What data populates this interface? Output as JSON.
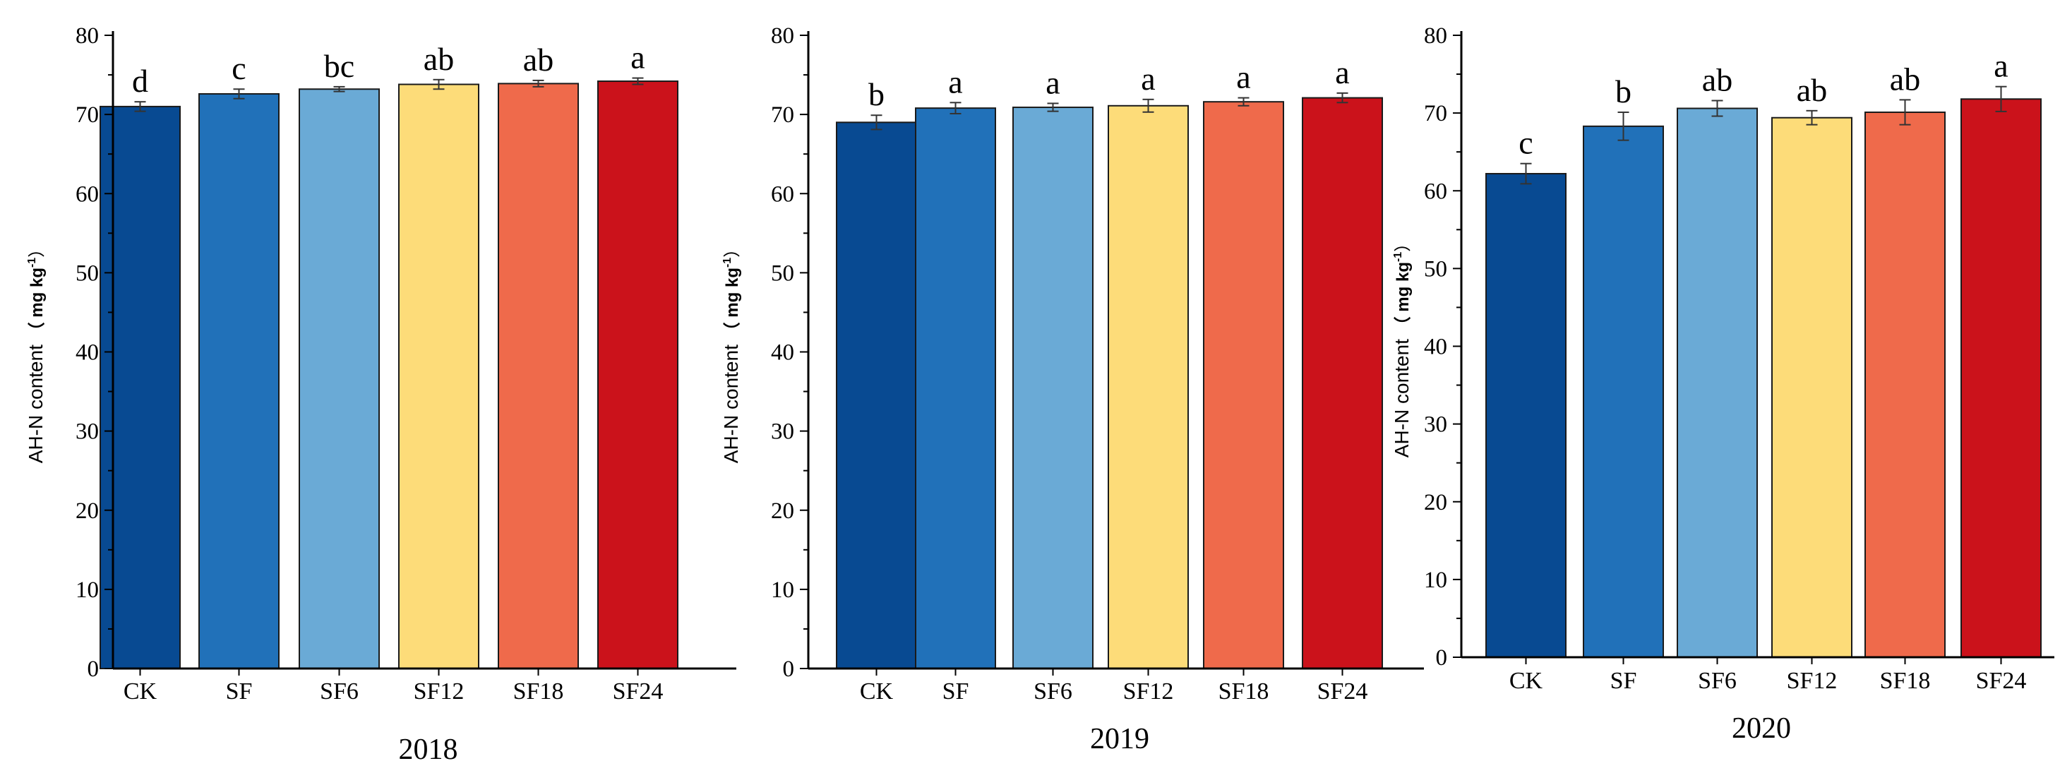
{
  "chart_data": [
    {
      "type": "bar",
      "title": "2018",
      "xlabel": "2018",
      "ylabel": "AH-N content",
      "ylabel_unit": "（ mg kg",
      "ylabel_unit_sup": "-1",
      "ylabel_unit_close": "）",
      "ylim": [
        0,
        80
      ],
      "yticks": [
        0,
        10,
        20,
        30,
        40,
        50,
        60,
        70,
        80
      ],
      "categories": [
        "CK",
        "SF",
        "SF6",
        "SF12",
        "SF18",
        "SF24"
      ],
      "values": [
        71.0,
        72.6,
        73.2,
        73.8,
        73.9,
        74.2
      ],
      "errors": [
        0.6,
        0.6,
        0.3,
        0.6,
        0.4,
        0.4
      ],
      "significance": [
        "d",
        "c",
        "bc",
        "ab",
        "ab",
        "a"
      ]
    },
    {
      "type": "bar",
      "title": "2019",
      "xlabel": "2019",
      "ylabel": "AH-N content",
      "ylabel_unit": "（ mg kg",
      "ylabel_unit_sup": "-1",
      "ylabel_unit_close": "）",
      "ylim": [
        0,
        80
      ],
      "yticks": [
        0,
        10,
        20,
        30,
        40,
        50,
        60,
        70,
        80
      ],
      "categories": [
        "CK",
        "SF",
        "SF6",
        "SF12",
        "SF18",
        "SF24"
      ],
      "values": [
        69.0,
        70.8,
        70.9,
        71.1,
        71.6,
        72.1
      ],
      "errors": [
        0.9,
        0.7,
        0.5,
        0.8,
        0.5,
        0.6
      ],
      "significance": [
        "b",
        "a",
        "a",
        "a",
        "a",
        "a"
      ]
    },
    {
      "type": "bar",
      "title": "2020",
      "xlabel": "2020",
      "ylabel": "AH-N content",
      "ylabel_unit": "（ mg kg",
      "ylabel_unit_sup": "-1",
      "ylabel_unit_close": "）",
      "ylim": [
        0,
        80
      ],
      "yticks": [
        0,
        10,
        20,
        30,
        40,
        50,
        60,
        70,
        80
      ],
      "categories": [
        "CK",
        "SF",
        "SF6",
        "SF12",
        "SF18",
        "SF24"
      ],
      "values": [
        62.2,
        68.3,
        70.6,
        69.4,
        70.1,
        71.8
      ],
      "errors": [
        1.3,
        1.8,
        1.0,
        0.9,
        1.6,
        1.6
      ],
      "significance": [
        "c",
        "b",
        "ab",
        "ab",
        "ab",
        "a"
      ]
    }
  ],
  "colors": [
    "#084a92",
    "#2171b9",
    "#6aaad6",
    "#fddc79",
    "#ef6a4b",
    "#cb121b"
  ]
}
